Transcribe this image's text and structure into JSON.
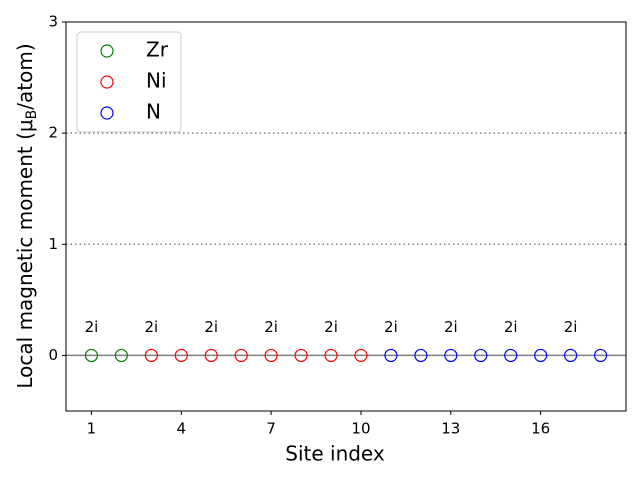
{
  "chart_data": {
    "type": "scatter",
    "xlabel": "Site index",
    "ylabel": {
      "before": "Local magnetic moment (μ",
      "sub": "B",
      "after": "/atom)"
    },
    "xlim": [
      0.15,
      18.85
    ],
    "ylim": [
      -0.5,
      3
    ],
    "xticks": [
      1,
      4,
      7,
      10,
      13,
      16
    ],
    "yticks": [
      0,
      1,
      2,
      3
    ],
    "legend": "upper left",
    "series": [
      {
        "name": "Zr",
        "color": "#008000",
        "x": [
          1,
          2
        ],
        "values": [
          0,
          0
        ]
      },
      {
        "name": "Ni",
        "color": "#ff0000",
        "x": [
          3,
          4,
          5,
          6,
          7,
          8,
          9,
          10
        ],
        "values": [
          0,
          0,
          0,
          0,
          0,
          0,
          0,
          0
        ]
      },
      {
        "name": "N",
        "color": "#0000ff",
        "x": [
          11,
          12,
          13,
          14,
          15,
          16,
          17,
          18
        ],
        "values": [
          0,
          0,
          0,
          0,
          0,
          0,
          0,
          0
        ]
      }
    ],
    "hlines": [
      {
        "y": 0,
        "style": "solid",
        "color": "#808080"
      },
      {
        "y": 1,
        "style": "dotted",
        "color": "#808080"
      },
      {
        "y": 2,
        "style": "dotted",
        "color": "#808080"
      }
    ],
    "annotations": [
      {
        "x": 1,
        "y": 0.25,
        "text": "2i"
      },
      {
        "x": 3,
        "y": 0.25,
        "text": "2i"
      },
      {
        "x": 5,
        "y": 0.25,
        "text": "2i"
      },
      {
        "x": 7,
        "y": 0.25,
        "text": "2i"
      },
      {
        "x": 9,
        "y": 0.25,
        "text": "2i"
      },
      {
        "x": 11,
        "y": 0.25,
        "text": "2i"
      },
      {
        "x": 13,
        "y": 0.25,
        "text": "2i"
      },
      {
        "x": 15,
        "y": 0.25,
        "text": "2i"
      },
      {
        "x": 17,
        "y": 0.25,
        "text": "2i"
      }
    ]
  }
}
